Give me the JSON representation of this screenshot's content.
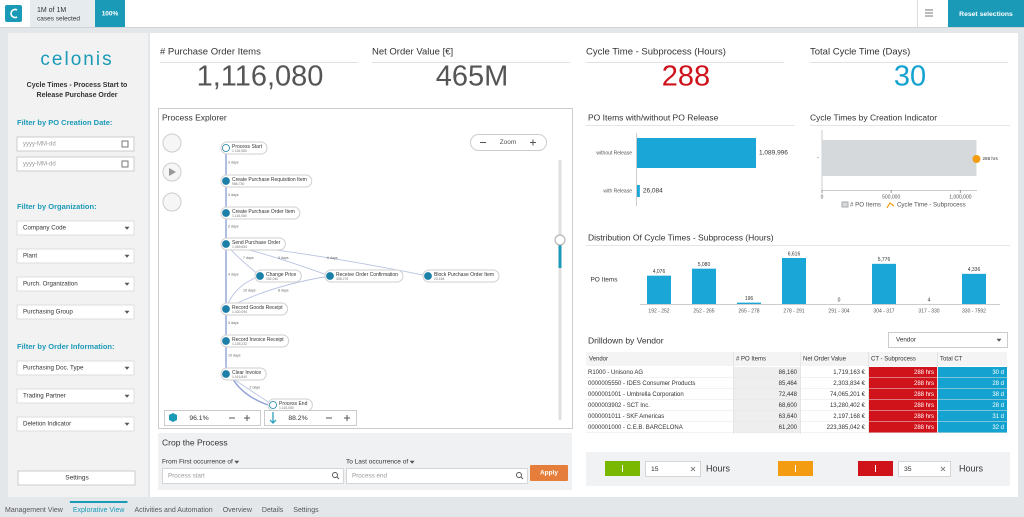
{
  "topbar": {
    "selection": "1M of 1M",
    "selection_note": "cases selected",
    "share": "100%",
    "reset": "Reset selections"
  },
  "sidebar": {
    "logo": "celonis",
    "title": [
      "Cycle Times - Process Start to",
      "Release Purchase Order"
    ],
    "date_filter": {
      "label": "Filter by PO Creation Date:",
      "placeholders": [
        "yyyy-MM-dd",
        "yyyy-MM-dd"
      ]
    },
    "org_filter": {
      "label": "Filter by Organization:",
      "dropdowns": [
        "Company Code",
        "Plant",
        "Purch. Organization",
        "Purchasing Group"
      ]
    },
    "order_filter": {
      "label": "Filter by Order Information:",
      "dropdowns": [
        "Purchasing Doc. Type",
        "Trading Partner",
        "Deletion Indicator"
      ]
    },
    "settings": "Settings"
  },
  "kpis": [
    {
      "label": "# Purchase Order Items",
      "value": "1,116,080",
      "color": "#555555"
    },
    {
      "label": "Net Order Value [€]",
      "value": "465M",
      "color": "#555555"
    },
    {
      "label": "Cycle Time - Subprocess (Hours)",
      "value": "288",
      "color": "#d0121b"
    },
    {
      "label": "Total Cycle Time (Days)",
      "value": "30",
      "color": "#14a3d0"
    }
  ],
  "process_explorer": {
    "title": "Process Explorer",
    "zoom": "Zoom",
    "nodes": [
      {
        "label": "Process Start",
        "count": "1,116,080"
      },
      {
        "label": "Create Purchase Requisition Item",
        "count": "986,730"
      },
      {
        "label": "Create Purchase Order Item",
        "count": "1,116,080"
      },
      {
        "label": "Send Purchase Order",
        "count": "1,069,654"
      },
      {
        "label": "Change Price",
        "count": "152,040"
      },
      {
        "label": "Receive Order Confirmation",
        "count": "308,276"
      },
      {
        "label": "Block Purchase Order Item",
        "count": "23,184"
      },
      {
        "label": "Record Goods Receipt",
        "count": "1,020,094"
      },
      {
        "label": "Record Invoice Receipt",
        "count": "1,105,232"
      },
      {
        "label": "Clear Invoice",
        "count": "1,016,840"
      },
      {
        "label": "Process End",
        "count": "1,116,080"
      }
    ],
    "edges": [
      {
        "from": 0,
        "to": 1,
        "label": "3 days"
      },
      {
        "from": 1,
        "to": 2,
        "label": "3 days"
      },
      {
        "from": 2,
        "to": 3,
        "label": "2 days"
      },
      {
        "from": 3,
        "to": 4,
        "label": "7 days"
      },
      {
        "from": 3,
        "to": 5,
        "label": "5 days"
      },
      {
        "from": 3,
        "to": 6,
        "label": "6 days"
      },
      {
        "from": 3,
        "to": 7,
        "label": "4 days"
      },
      {
        "from": 4,
        "to": 7,
        "label": "10 days"
      },
      {
        "from": 5,
        "to": 7,
        "label": "8 days"
      },
      {
        "from": 7,
        "to": 8,
        "label": "3 days"
      },
      {
        "from": 8,
        "to": 9,
        "label": "10 days"
      },
      {
        "from": 9,
        "to": 10,
        "label": "2 days"
      }
    ],
    "activity_slider": "96.1%",
    "connection_slider": "88.2%"
  },
  "crop": {
    "title": "Crop the Process",
    "from_label": "From First occurrence of",
    "to_label": "To Last occurrence of",
    "from_placeholder": "Process start",
    "to_placeholder": "Process end",
    "apply": "Apply"
  },
  "charts": [
    {
      "type": "hbar",
      "title": "PO Items with/without PO Release",
      "categories": [
        "without Release",
        "with Release"
      ],
      "values": [
        1089996,
        26084
      ],
      "value_labels": [
        "1,089,996",
        "26,084"
      ],
      "color": "#1aa6d6"
    },
    {
      "type": "combo",
      "title": "Cycle Times by Creation Indicator",
      "categories": [
        "-"
      ],
      "series": [
        {
          "name": "# PO Items",
          "color": "#d6d9dc",
          "values": [
            1116080
          ]
        },
        {
          "name": "Cycle Time - Subprocess",
          "color": "#f39c12",
          "values": [
            288
          ],
          "value_labels": [
            "288 hrs"
          ],
          "axis": "y2"
        }
      ],
      "xlim": [
        0,
        1120000
      ],
      "xticks": [
        0,
        {
          "value": 500000,
          "label": "500,000"
        },
        {
          "value": 1000000,
          "label": "1,000,000"
        }
      ]
    },
    {
      "type": "bar",
      "title": "Distribution Of Cycle Times - Subprocess (Hours)",
      "y_label": "PO Items",
      "categories": [
        "192 - 252",
        "252 - 265",
        "265 - 278",
        "278 - 291",
        "291 - 304",
        "304 - 317",
        "317 - 330",
        "330 - 7592"
      ],
      "values": [
        4076,
        5080,
        196,
        6616,
        0,
        5776,
        4,
        4336
      ],
      "value_labels": [
        "4,076",
        "5,080",
        "196",
        "6,616",
        "0",
        "5,776",
        "4",
        "4,336"
      ],
      "color": "#1aa6d6"
    }
  ],
  "drilldown": {
    "title": "Drilldown by Vendor",
    "selector": "Vendor",
    "columns": [
      "Vendor",
      "# PO Items",
      "Net Order Value",
      "CT - Subprocess",
      "Total CT"
    ],
    "rows": [
      [
        "R1000 - Unisono AG",
        "86,160",
        "1,719,163 €",
        "288 hrs",
        "30 d"
      ],
      [
        "0000005550 - IDES Consumer Products",
        "85,464",
        "2,303,834 €",
        "288 hrs",
        "28 d"
      ],
      [
        "0000001001 - Umbrella Corporation",
        "72,448",
        "74,065,201 €",
        "288 hrs",
        "38 d"
      ],
      [
        "0000003902 - SCT Inc.",
        "68,600",
        "13,280,402 €",
        "288 hrs",
        "28 d"
      ],
      [
        "0000001011 - SKF Americas",
        "63,640",
        "2,197,168 €",
        "288 hrs",
        "31 d"
      ],
      [
        "0000001000 - C.E.B. BARCELONA",
        "61,200",
        "223,385,042 €",
        "288 hrs",
        "32 d"
      ]
    ]
  },
  "thresholds": {
    "low": "15",
    "high": "35",
    "unit": "Hours"
  },
  "tabs": {
    "items": [
      "Management View",
      "Explorative View",
      "Activities and Automation",
      "Overview",
      "Details",
      "Settings"
    ],
    "active": 1
  }
}
